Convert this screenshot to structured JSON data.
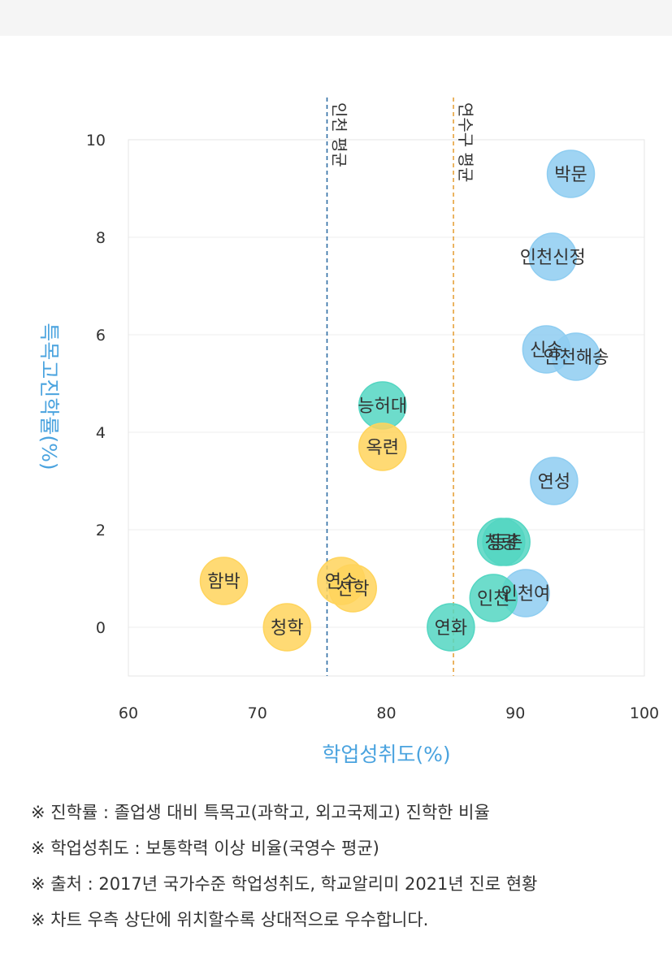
{
  "chart_data": {
    "type": "scatter",
    "xlabel": "학업성취도(%)",
    "ylabel": "특목고진학률(%)",
    "xlim": [
      60,
      100
    ],
    "ylim": [
      -1,
      10
    ],
    "xticks": [
      60,
      70,
      80,
      90,
      100
    ],
    "yticks": [
      0,
      2,
      4,
      6,
      8,
      10
    ],
    "grid": "horizontal",
    "reference_lines": [
      {
        "label": "인천 평균",
        "x": 75.4,
        "color": "#2e6da4"
      },
      {
        "label": "연수구 평균",
        "x": 85.2,
        "color": "#e6a23c"
      }
    ],
    "colors": {
      "blue": "#8ecdf1",
      "teal": "#54d6c2",
      "yellow": "#ffd45c"
    },
    "points": [
      {
        "label": "박문",
        "x": 94.3,
        "y": 9.3,
        "color": "blue"
      },
      {
        "label": "인천신정",
        "x": 92.9,
        "y": 7.6,
        "color": "blue"
      },
      {
        "label": "신송",
        "x": 92.4,
        "y": 5.7,
        "color": "blue"
      },
      {
        "label": "인천해송",
        "x": 94.7,
        "y": 5.55,
        "color": "blue"
      },
      {
        "label": "능허대",
        "x": 79.7,
        "y": 4.55,
        "color": "teal"
      },
      {
        "label": "옥련",
        "x": 79.7,
        "y": 3.7,
        "color": "yellow"
      },
      {
        "label": "연성",
        "x": 93.0,
        "y": 3.0,
        "color": "blue"
      },
      {
        "label": "청량",
        "x": 88.9,
        "y": 1.75,
        "color": "teal"
      },
      {
        "label": "동춘",
        "x": 89.3,
        "y": 1.75,
        "color": "teal"
      },
      {
        "label": "인천여",
        "x": 90.8,
        "y": 0.7,
        "color": "blue"
      },
      {
        "label": "인천",
        "x": 88.3,
        "y": 0.6,
        "color": "teal"
      },
      {
        "label": "함박",
        "x": 67.4,
        "y": 0.95,
        "color": "yellow"
      },
      {
        "label": "연수",
        "x": 76.5,
        "y": 0.95,
        "color": "yellow"
      },
      {
        "label": "선학",
        "x": 77.4,
        "y": 0.8,
        "color": "yellow"
      },
      {
        "label": "청학",
        "x": 72.3,
        "y": 0.0,
        "color": "yellow"
      },
      {
        "label": "연화",
        "x": 85.0,
        "y": 0.0,
        "color": "teal"
      }
    ]
  },
  "notes": [
    "※ 진학률 : 졸업생 대비 특목고(과학고, 외고국제고) 진학한 비율",
    "※ 학업성취도 : 보통학력 이상 비율(국영수 평균)",
    "※ 출처 : 2017년 국가수준 학업성취도, 학교알리미 2021년 진로 현황",
    "※ 차트 우측 상단에 위치할수록 상대적으로 우수합니다."
  ]
}
